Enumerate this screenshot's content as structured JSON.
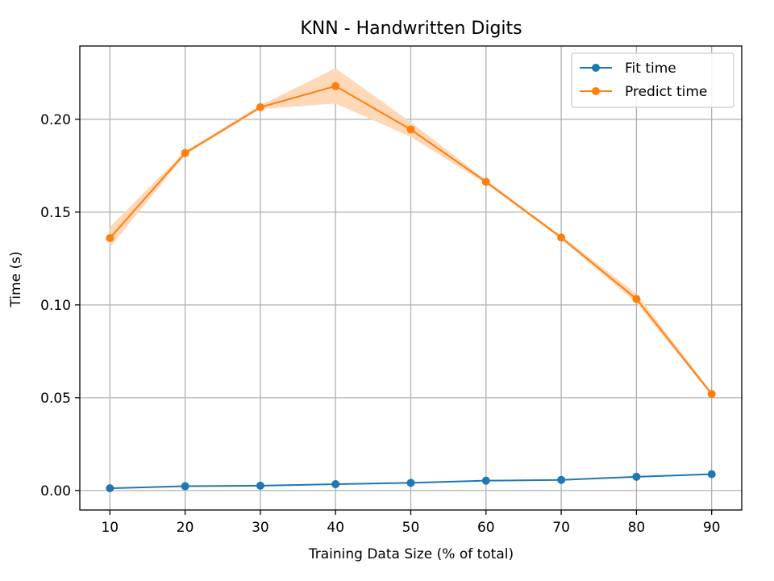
{
  "chart_data": {
    "type": "line",
    "title": "KNN - Handwritten Digits",
    "xlabel": "Training Data Size (% of total)",
    "ylabel": "Time (s)",
    "x": [
      10,
      20,
      30,
      40,
      50,
      60,
      70,
      80,
      90
    ],
    "xlim": [
      6,
      94
    ],
    "ylim": [
      -0.0105,
      0.2395
    ],
    "x_ticks": [
      10,
      20,
      30,
      40,
      50,
      60,
      70,
      80,
      90
    ],
    "x_tick_labels": [
      "10",
      "20",
      "30",
      "40",
      "50",
      "60",
      "70",
      "80",
      "90"
    ],
    "y_ticks": [
      0.0,
      0.05,
      0.1,
      0.15,
      0.2
    ],
    "y_tick_labels": [
      "0.00",
      "0.05",
      "0.10",
      "0.15",
      "0.20"
    ],
    "grid": true,
    "legend_position": "top-right",
    "series": [
      {
        "name": "Fit time",
        "color": "#1f77b4",
        "values": [
          0.0012,
          0.0023,
          0.0026,
          0.0034,
          0.0041,
          0.0053,
          0.0057,
          0.0074,
          0.0088
        ],
        "band_lower": [
          0.001,
          0.0021,
          0.0024,
          0.0032,
          0.0039,
          0.0051,
          0.0055,
          0.0072,
          0.0086
        ],
        "band_upper": [
          0.0014,
          0.0025,
          0.0028,
          0.0036,
          0.0043,
          0.0055,
          0.0059,
          0.0076,
          0.009
        ]
      },
      {
        "name": "Predict time",
        "color": "#ff7f0e",
        "band_color": "#ffd8b8",
        "values": [
          0.136,
          0.1818,
          0.2065,
          0.2179,
          0.1945,
          0.1663,
          0.1363,
          0.1032,
          0.052
        ],
        "band_lower": [
          0.131,
          0.1808,
          0.2055,
          0.2085,
          0.1905,
          0.1653,
          0.1353,
          0.101,
          0.051
        ],
        "band_upper": [
          0.142,
          0.1828,
          0.2075,
          0.2275,
          0.1985,
          0.1673,
          0.1373,
          0.106,
          0.053
        ]
      }
    ]
  }
}
